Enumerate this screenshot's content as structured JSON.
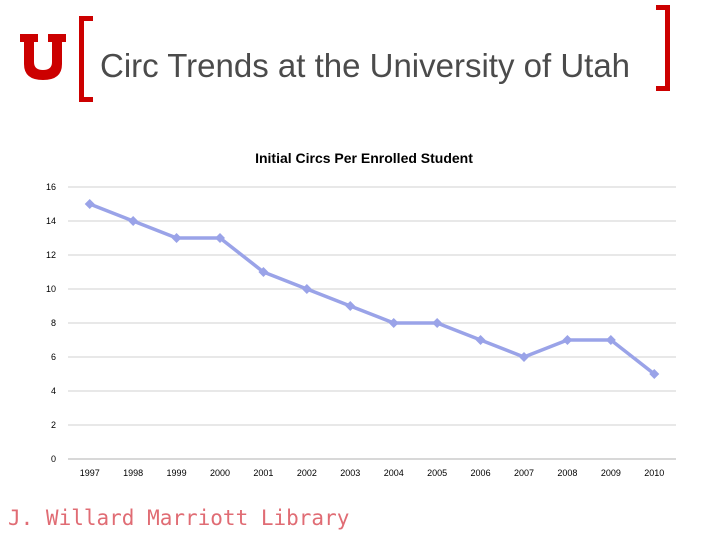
{
  "header": {
    "title": "Circ Trends at the University of Utah",
    "logo_letter": "U",
    "accent_color": "#cc0000"
  },
  "footer": {
    "text": "J. Willard Marriott Library"
  },
  "chart_data": {
    "type": "line",
    "title": "Initial Circs Per Enrolled Student",
    "xlabel": "",
    "ylabel": "",
    "categories": [
      "1997",
      "1998",
      "1999",
      "2000",
      "2001",
      "2002",
      "2003",
      "2004",
      "2005",
      "2006",
      "2007",
      "2008",
      "2009",
      "2010"
    ],
    "series": [
      {
        "values": [
          15,
          14,
          13,
          13,
          11,
          10,
          9,
          8,
          8,
          7,
          6,
          7,
          7,
          5
        ],
        "color": "#9aa3e8"
      }
    ],
    "ylim": [
      0,
      16
    ],
    "yticks": [
      0,
      2,
      4,
      6,
      8,
      10,
      12,
      14,
      16
    ],
    "grid": true,
    "legend": "none"
  }
}
